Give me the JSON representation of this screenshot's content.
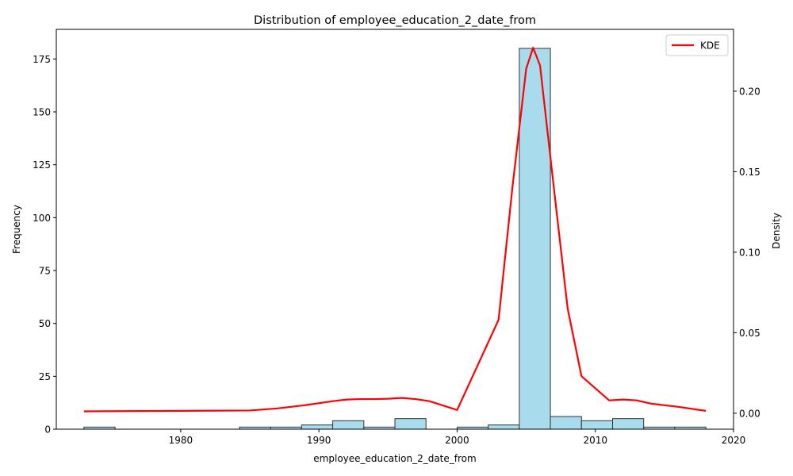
{
  "chart_data": {
    "type": "bar",
    "title": "Distribution of employee_education_2_date_from",
    "xlabel": "employee_education_2_date_from",
    "ylabel": "Frequency",
    "y2label": "Density",
    "xlim": [
      1971,
      2020
    ],
    "ylim": [
      0,
      189
    ],
    "y2lim": [
      -0.0099,
      0.2384
    ],
    "x_ticks": [
      1980,
      1990,
      2000,
      2010,
      2020
    ],
    "y_ticks": [
      0,
      25,
      50,
      75,
      100,
      125,
      150,
      175
    ],
    "y2_ticks": [
      0.0,
      0.05,
      0.1,
      0.15,
      0.2
    ],
    "y2_tick_labels": [
      "0.00",
      "0.05",
      "0.10",
      "0.15",
      "0.20"
    ],
    "histogram": {
      "name": "Frequency",
      "bin_start": 1973,
      "bin_width": 2.25,
      "counts": [
        1,
        0,
        0,
        0,
        0,
        1,
        1,
        2,
        4,
        1,
        5,
        0,
        1,
        2,
        180,
        6,
        4,
        5,
        1,
        1
      ],
      "fill_color": "#a8dcec",
      "edge_color": "#333333"
    },
    "kde": {
      "name": "KDE",
      "color": "#ff0000",
      "x": [
        1973,
        1985,
        1987,
        1989,
        1991,
        1992,
        1993,
        1994,
        1995,
        1996,
        1997,
        1998,
        2000,
        2003,
        2004,
        2005,
        2005.5,
        2006,
        2007,
        2008,
        2009,
        2011,
        2012,
        2013,
        2014,
        2016,
        2018
      ],
      "y": [
        0.0012,
        0.0017,
        0.003,
        0.005,
        0.0075,
        0.0085,
        0.0088,
        0.0088,
        0.009,
        0.0095,
        0.0088,
        0.0075,
        0.002,
        0.058,
        0.14,
        0.214,
        0.227,
        0.216,
        0.14,
        0.065,
        0.023,
        0.008,
        0.0085,
        0.008,
        0.006,
        0.004,
        0.0015
      ]
    },
    "legend": {
      "entries": [
        "KDE"
      ],
      "placement": "top-right"
    },
    "grid": false
  }
}
